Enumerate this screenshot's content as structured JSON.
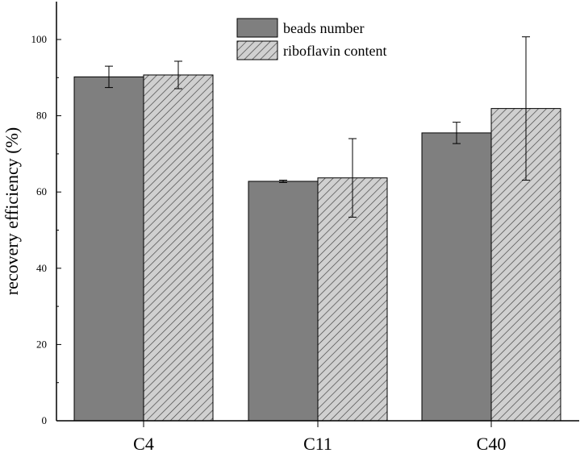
{
  "chart_data": {
    "type": "bar",
    "title": "",
    "xlabel": "",
    "ylabel": "recovery efficiency (%)",
    "ylim": [
      0,
      110
    ],
    "yticks": [
      0,
      20,
      40,
      60,
      80,
      100
    ],
    "categories": [
      "C4",
      "C11",
      "C40"
    ],
    "legend_position": "top-center",
    "series": [
      {
        "name": "beads number",
        "color": "#7f7f7f",
        "pattern": "solid",
        "values": [
          90.2,
          62.8,
          75.5
        ],
        "errors": [
          2.8,
          0.3,
          2.8
        ]
      },
      {
        "name": "riboflavin content",
        "color": "#c8c8c8",
        "pattern": "diagonal-hatch",
        "values": [
          90.7,
          63.7,
          81.9
        ],
        "errors": [
          3.6,
          10.3,
          18.8
        ]
      }
    ]
  }
}
